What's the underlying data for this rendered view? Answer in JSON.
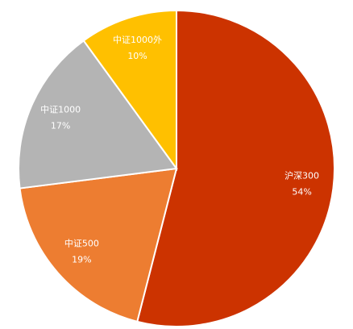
{
  "chart_data": {
    "type": "pie",
    "categories": [
      "沪深300",
      "中证500",
      "中证1000",
      "中证1000外"
    ],
    "values": [
      54,
      19,
      17,
      10
    ],
    "value_labels": [
      "54%",
      "19%",
      "17%",
      "10%"
    ],
    "colors": [
      "#cc3300",
      "#ed7d31",
      "#b4b4b4",
      "#ffc000"
    ]
  }
}
